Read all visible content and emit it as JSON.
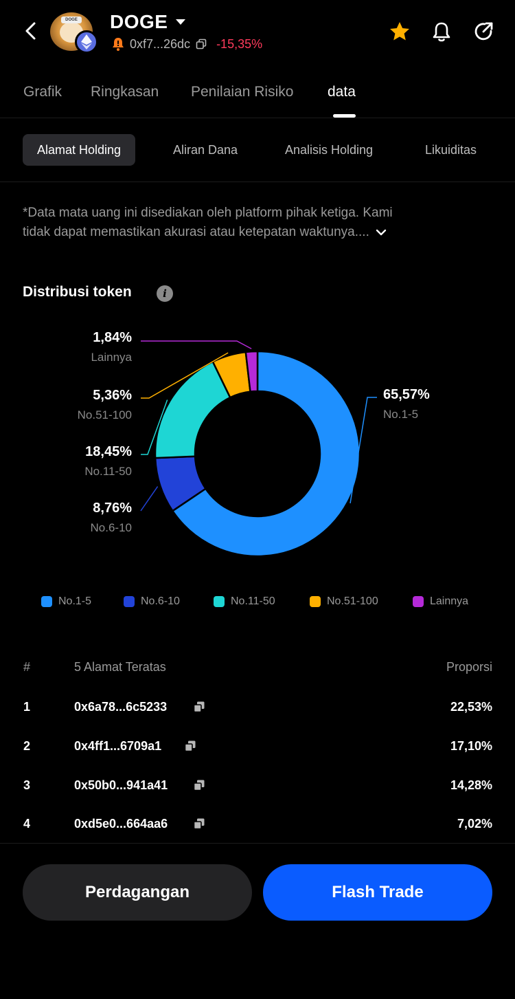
{
  "header": {
    "token_name": "DOGE",
    "address": "0xf7...26dc",
    "change": "-15,35%",
    "avatar_label": "DOGE"
  },
  "main_tabs": [
    {
      "label": "Grafik"
    },
    {
      "label": "Ringkasan"
    },
    {
      "label": "Penilaian Risiko"
    },
    {
      "label": "data"
    }
  ],
  "sub_tabs": [
    {
      "label": "Alamat Holding"
    },
    {
      "label": "Aliran Dana"
    },
    {
      "label": "Analisis Holding"
    },
    {
      "label": "Likuiditas"
    }
  ],
  "disclaimer": {
    "line1": "*Data mata uang ini disediakan oleh platform pihak ketiga. Kami",
    "line2": "tidak dapat memastikan akurasi atau ketepatan waktunya...."
  },
  "distribution": {
    "title": "Distribusi token"
  },
  "chart_data": {
    "type": "pie",
    "donut": true,
    "slices": [
      {
        "label": "No.1-5",
        "value": 65.57,
        "display": "65,57%",
        "color": "#1e90ff"
      },
      {
        "label": "No.6-10",
        "value": 8.76,
        "display": "8,76%",
        "color": "#2243d8"
      },
      {
        "label": "No.11-50",
        "value": 18.45,
        "display": "18,45%",
        "color": "#1ed6d4"
      },
      {
        "label": "No.51-100",
        "value": 5.36,
        "display": "5,36%",
        "color": "#ffb000"
      },
      {
        "label": "Lainnya",
        "value": 1.84,
        "display": "1,84%",
        "color": "#b52ad8"
      }
    ],
    "legend_position": "bottom"
  },
  "legend": [
    {
      "label": "No.1-5",
      "color": "#1e90ff"
    },
    {
      "label": "No.6-10",
      "color": "#2243d8"
    },
    {
      "label": "No.11-50",
      "color": "#1ed6d4"
    },
    {
      "label": "No.51-100",
      "color": "#ffb000"
    },
    {
      "label": "Lainnya",
      "color": "#b52ad8"
    }
  ],
  "table": {
    "col_rank": "#",
    "col_address": "5 Alamat Teratas",
    "col_prop": "Proporsi",
    "rows": [
      {
        "rank": "1",
        "address": "0x6a78...6c5233",
        "pct": "22,53%"
      },
      {
        "rank": "2",
        "address": "0x4ff1...6709a1",
        "pct": "17,10%"
      },
      {
        "rank": "3",
        "address": "0x50b0...941a41",
        "pct": "14,28%"
      },
      {
        "rank": "4",
        "address": "0xd5e0...664aa6",
        "pct": "7,02%"
      }
    ]
  },
  "buttons": {
    "trade": "Perdagangan",
    "flash": "Flash Trade"
  },
  "colors": {
    "accent": "#0a5cff",
    "negative": "#ff3b5c",
    "star": "#ffb000"
  },
  "icons": [
    "back-arrow-icon",
    "ethereum-icon",
    "warning-icon",
    "copy-icon",
    "star-icon",
    "bell-icon",
    "share-icon",
    "info-icon",
    "chevron-down-icon"
  ]
}
